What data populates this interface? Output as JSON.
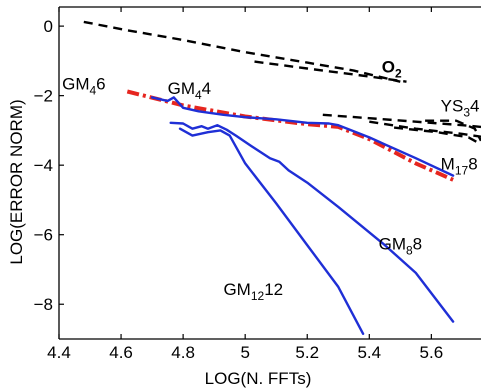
{
  "chart_data": {
    "type": "line",
    "title": "",
    "xlabel": "LOG(N. FFTs)",
    "ylabel": "LOG(ERROR NORM)",
    "xlim": [
      4.4,
      5.76
    ],
    "ylim": [
      -9.0,
      0.55
    ],
    "xticks": [
      {
        "value": 4.4,
        "label": "4.4"
      },
      {
        "value": 4.6,
        "label": "4.6"
      },
      {
        "value": 4.8,
        "label": "4.8"
      },
      {
        "value": 5.0,
        "label": "5"
      },
      {
        "value": 5.2,
        "label": "5.2"
      },
      {
        "value": 5.4,
        "label": "5.4"
      },
      {
        "value": 5.6,
        "label": "5.6"
      }
    ],
    "yticks": [
      {
        "value": 0,
        "label": "0"
      },
      {
        "value": -2,
        "label": "−2"
      },
      {
        "value": -4,
        "label": "−4"
      },
      {
        "value": -6,
        "label": "−6"
      },
      {
        "value": -8,
        "label": "−8"
      }
    ],
    "grid": false,
    "series": [
      {
        "name": "O2",
        "style": "dashed",
        "color": "#000000",
        "width": 2.4,
        "points": [
          [
            4.48,
            0.12
          ],
          [
            4.62,
            -0.12
          ],
          [
            4.8,
            -0.4
          ],
          [
            5.0,
            -0.75
          ],
          [
            5.2,
            -1.05
          ],
          [
            5.35,
            -1.28
          ],
          [
            5.5,
            -1.6
          ]
        ]
      },
      {
        "name": "O2",
        "style": "dashed",
        "color": "#000000",
        "width": 2.4,
        "points": [
          [
            5.03,
            -1.02
          ],
          [
            5.2,
            -1.22
          ],
          [
            5.4,
            -1.45
          ],
          [
            5.52,
            -1.6
          ]
        ]
      },
      {
        "name": "YS34",
        "style": "dashed",
        "color": "#000000",
        "width": 2.4,
        "points": [
          [
            5.25,
            -2.55
          ],
          [
            5.4,
            -2.65
          ],
          [
            5.55,
            -2.75
          ],
          [
            5.7,
            -2.85
          ],
          [
            5.76,
            -2.9
          ]
        ]
      },
      {
        "name": "YS34",
        "style": "dashed",
        "color": "#000000",
        "width": 2.4,
        "points": [
          [
            5.4,
            -2.75
          ],
          [
            5.55,
            -2.95
          ],
          [
            5.7,
            -3.1
          ],
          [
            5.76,
            -3.18
          ]
        ]
      },
      {
        "name": "YS34",
        "style": "dashed",
        "color": "#000000",
        "width": 2.4,
        "points": [
          [
            5.48,
            -2.92
          ],
          [
            5.62,
            -3.05
          ],
          [
            5.72,
            -3.2
          ],
          [
            5.76,
            -3.4
          ]
        ]
      },
      {
        "name": "M178",
        "style": "dashed",
        "color": "#000000",
        "width": 2.4,
        "points": [
          [
            5.58,
            -2.72
          ],
          [
            5.68,
            -2.72
          ],
          [
            5.74,
            -2.95
          ],
          [
            5.76,
            -3.3
          ]
        ]
      },
      {
        "name": "GM46",
        "style": "dashdot",
        "color": "#e6261f",
        "width": 4,
        "points": [
          [
            4.62,
            -1.88
          ],
          [
            4.8,
            -2.28
          ],
          [
            5.0,
            -2.6
          ],
          [
            5.2,
            -2.82
          ],
          [
            5.3,
            -2.9
          ],
          [
            5.4,
            -3.25
          ],
          [
            5.55,
            -3.95
          ],
          [
            5.67,
            -4.42
          ]
        ]
      },
      {
        "name": "GM44",
        "style": "solid",
        "color": "#1f2fd6",
        "width": 2.4,
        "points": [
          [
            4.7,
            -2.05
          ],
          [
            4.75,
            -2.15
          ],
          [
            4.77,
            -2.05
          ],
          [
            4.8,
            -2.35
          ],
          [
            4.85,
            -2.45
          ],
          [
            4.93,
            -2.55
          ],
          [
            5.0,
            -2.62
          ],
          [
            5.1,
            -2.68
          ],
          [
            5.2,
            -2.78
          ],
          [
            5.27,
            -2.8
          ],
          [
            5.3,
            -2.85
          ],
          [
            5.4,
            -3.2
          ],
          [
            5.55,
            -3.8
          ],
          [
            5.67,
            -4.3
          ]
        ]
      },
      {
        "name": "GM88",
        "style": "solid",
        "color": "#1f2fd6",
        "width": 2.4,
        "points": [
          [
            4.76,
            -2.78
          ],
          [
            4.8,
            -2.8
          ],
          [
            4.83,
            -2.95
          ],
          [
            4.86,
            -2.88
          ],
          [
            4.88,
            -2.95
          ],
          [
            4.91,
            -2.85
          ],
          [
            4.94,
            -2.98
          ],
          [
            4.97,
            -3.15
          ],
          [
            5.02,
            -3.45
          ],
          [
            5.08,
            -3.8
          ],
          [
            5.11,
            -3.9
          ],
          [
            5.14,
            -4.15
          ],
          [
            5.2,
            -4.5
          ],
          [
            5.3,
            -5.2
          ],
          [
            5.45,
            -6.3
          ],
          [
            5.55,
            -7.1
          ],
          [
            5.67,
            -8.5
          ]
        ]
      },
      {
        "name": "GM1212",
        "style": "solid",
        "color": "#1f2fd6",
        "width": 2.4,
        "points": [
          [
            4.79,
            -2.95
          ],
          [
            4.83,
            -3.15
          ],
          [
            4.88,
            -3.05
          ],
          [
            4.92,
            -3.0
          ],
          [
            4.95,
            -3.15
          ],
          [
            5.0,
            -3.95
          ],
          [
            5.1,
            -5.1
          ],
          [
            5.2,
            -6.3
          ],
          [
            5.3,
            -7.5
          ],
          [
            5.38,
            -8.85
          ]
        ]
      }
    ],
    "annotations": [
      {
        "base": "GM",
        "sub": "4",
        "tail": "6",
        "x": 4.41,
        "y": -1.83
      },
      {
        "base": "GM",
        "sub": "4",
        "tail": "4",
        "x": 4.75,
        "y": -1.95
      },
      {
        "base": "O",
        "sub": "2",
        "tail": "",
        "x": 5.44,
        "y": -1.34,
        "bold": true
      },
      {
        "base": "YS",
        "sub": "3",
        "tail": "4",
        "x": 5.63,
        "y": -2.45
      },
      {
        "base": "M",
        "sub": "17",
        "tail": "8",
        "x": 5.63,
        "y": -4.13
      },
      {
        "base": "GM",
        "sub": "8",
        "tail": "8",
        "x": 5.43,
        "y": -6.43
      },
      {
        "base": "GM",
        "sub": "12",
        "tail": "12",
        "x": 4.93,
        "y": -7.73
      }
    ]
  }
}
